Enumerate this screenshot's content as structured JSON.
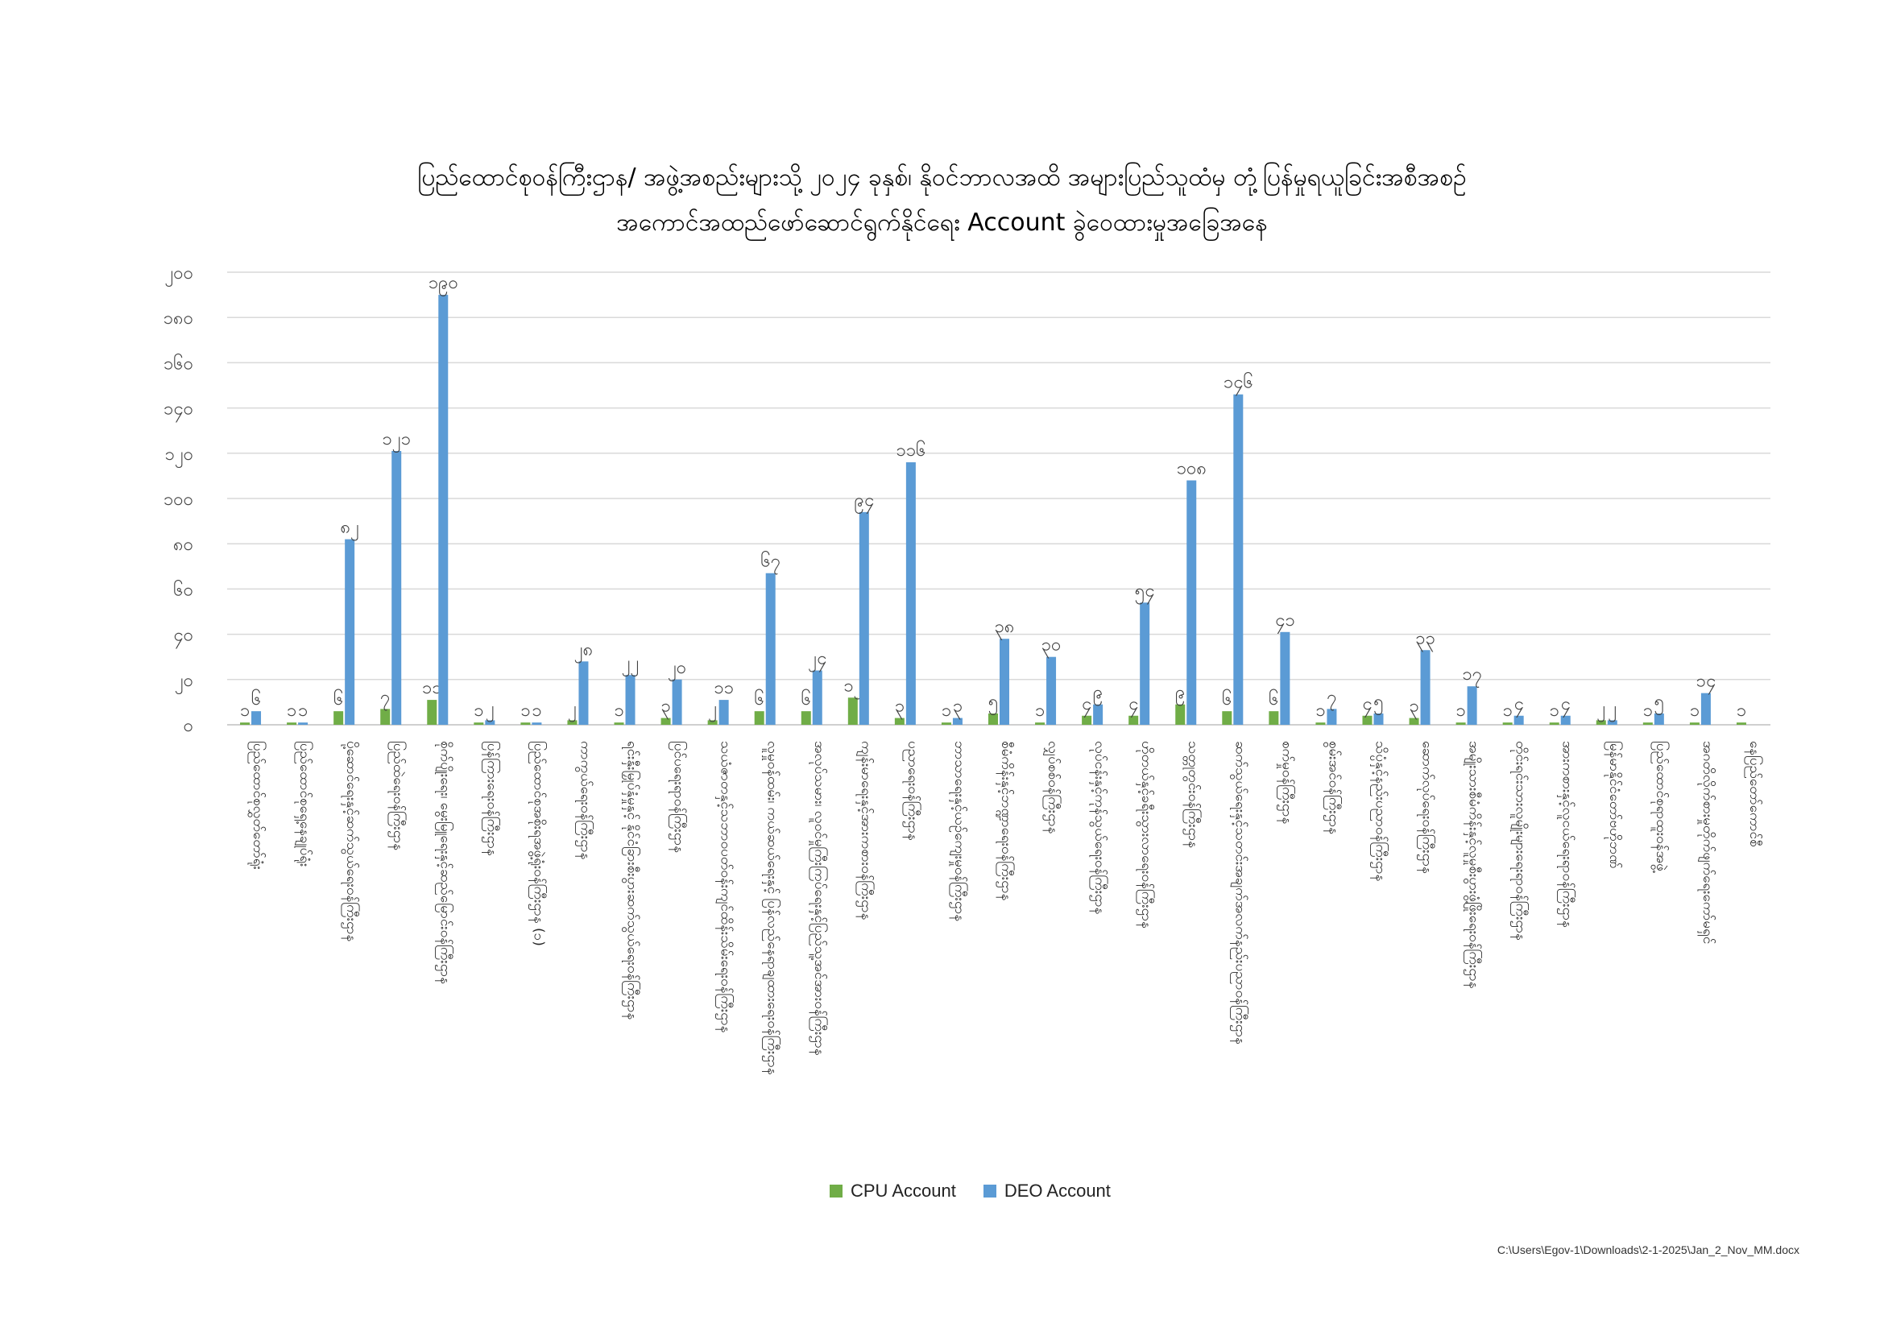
{
  "chart_data": {
    "type": "bar",
    "title": [
      "ပြည်ထောင်စုဝန်ကြီးဌာန/ အဖွဲ့အစည်းများသို့ ၂၀၂၄ ခုနှစ်၊ နိုဝင်ဘာလအထိ အများပြည်သူထံမှ တုံ့ပြန်မှုရယူခြင်းအစီအစဉ်",
      "အကောင်အထည်ဖော်ဆောင်ရွက်နိုင်ရေး Account ခွဲဝေထားမှုအခြေအနေ"
    ],
    "ylim": [
      0,
      200
    ],
    "yticks": [
      "၀",
      "၂၀",
      "၄၀",
      "၆၀",
      "၈၀",
      "၁၀၀",
      "၁၂၀",
      "၁၄၀",
      "၁၆၀",
      "၁၈၀",
      "၂၀၀"
    ],
    "ytick_values": [
      0,
      20,
      40,
      60,
      80,
      100,
      120,
      140,
      160,
      180,
      200
    ],
    "grid": true,
    "legend_position": "bottom",
    "categories": [
      "ပြည်ထောင်စုလွှတ်တော်ရုံး",
      "ပြည်ထောင်စုရှေ့နေချုပ်ရုံး",
      "ပို့ဆောင်ရေးနှင့်ဆက်သွယ်ရေးဝန်ကြီးဌာန",
      "ပြည်ထဲရေးဝန်ကြီးဌာန",
      "စိုက်ပျိုးရေး၊ မွေးမြူရေးနှင့်ဆည်မြောင်းဝန်ကြီးဌာန",
      "ပြန်ကြားရေးဝန်ကြီးဌာန",
      "ပြည်ထောင်စုအစိုးရအဖွဲ့ရုံးဝန်ကြီးဌာန (၁)",
      "ကာကွယ်ရေးဝန်ကြီးဌာန",
      "ရင်းနှီးမြှုပ်နှံမှုနှင့် နိုင်ငံခြားစီးပွားဆက်သွယ်ရေးဝန်ကြီးဌာန",
      "ပြင်ပရေးရာဝန်ကြီးဌာန",
      "သယံဇာတနှင့်သဘာဝပတ်ဝန်းကျင်ထိန်းသိမ်းရေးဝန်ကြီးဌာန",
      "လူမှုဝန်ထမ်း၊ ကယ်ဆယ်ရေးနှင့် ပြန်လည်နေရာချထားရေးဝန်ကြီးဌာန",
      "အလုပ်သမား၊ လူဝင်မှုကြီးကြပ်ရေးနှင့်ပြည်သူ့အင်အားဝန်ကြီးဌာန",
      "ကျန်းမာရေးနှင့်အားကစားဝန်ကြီးဌာန",
      "ပညာရေးဝန်ကြီးဌာန",
      "ဘာသာရေးနှင့်ယဉ်ကျေးမှုဝန်ကြီးဌာန",
      "စီမံကိန်းနှင့်ဘဏ္ဍာရေးဝန်ကြီးဌာန",
      "လျှပ်စစ်ဝန်ကြီးဌာန",
      "လုပ်ငန်းနှင့်ကုန်သွယ်ရေးဝန်ကြီးဌာန",
      "ဟိုတယ်နှင့်ခရီးသွားလာရေးဝန်ကြီးဌာန",
      "သတ္တုတွင်းဝန်ကြီးဌာန",
      "ဆက်သွယ်ရေးနှင့်သတင်းအချက်အလက်နည်းပညာဝန်ကြီးဌာန",
      "စက်မှုဝန်ကြီးဌာန",
      "စွမ်းအင်ဝန်ကြီးဌာန",
      "သိပ္ပံနှင့်နည်းပညာဝန်ကြီးဌာန",
      "ဆောက်လုပ်ရေးဝန်ကြီးဌာန",
      "အမျိုးသားစီမံကိန်းနှင့်လူမှုစီးပွားဖွံ့ဖြိုးရေးဝန်ကြီးဌာန",
      "တိုင်းရင်းသားလူမျိုးများရေးရာဝန်ကြီးဌာန",
      "အားကစားနှင့်လူငယ်ရေးရာဝန်ကြီးဌာန",
      "မြန်မာနိုင်ငံတော်ဗဟိုဘဏ်",
      "ပြည်ထောင်စုရာထူးဝန်အဖွဲ့",
      "အဂတိလိုက်စားမှုတိုက်ဖျက်ရေးကော်မရှင်",
      "နေပြည်တော်ကောင်စီ"
    ],
    "series": [
      {
        "name": "CPU Account",
        "color": "#70AD47",
        "values": [
          1,
          1,
          6,
          7,
          11,
          1,
          1,
          2,
          1,
          3,
          2,
          6,
          6,
          12,
          3,
          1,
          5,
          1,
          4,
          4,
          9,
          6,
          6,
          1,
          4,
          3,
          1,
          1,
          1,
          2,
          1,
          1,
          1
        ],
        "labels": [
          "၁",
          "၁",
          "၆",
          "၇",
          "၁၁",
          "၁",
          "၁",
          "၂",
          "၁",
          "၃",
          "၂",
          "၆",
          "၆",
          "၁၂",
          "၃",
          "၁",
          "၅",
          "၁",
          "၄",
          "၄",
          "၉",
          "၆",
          "၆",
          "၁",
          "၄",
          "၃",
          "၁",
          "၁",
          "၁",
          "၂",
          "၁",
          "၁",
          "၁"
        ]
      },
      {
        "name": "DEO Account",
        "color": "#5B9BD5",
        "values": [
          6,
          1,
          82,
          121,
          190,
          2,
          1,
          28,
          22,
          20,
          11,
          67,
          24,
          94,
          116,
          3,
          38,
          30,
          9,
          54,
          108,
          146,
          41,
          7,
          5,
          33,
          17,
          4,
          4,
          2,
          5,
          14,
          0
        ],
        "labels": [
          "၆",
          "၁",
          "၈၂",
          "၁၂၁",
          "၁၉၀",
          "၂",
          "၁",
          "၂၈",
          "၂၂",
          "၂၀",
          "၁၁",
          "၆၇",
          "၂၄",
          "၉၄",
          "၁၁၆",
          "၃",
          "၃၈",
          "၃၀",
          "၉",
          "၅၄",
          "၁၀၈",
          "၁၄၆",
          "၄၁",
          "၇",
          "၅",
          "၃၃",
          "၁၇",
          "၄",
          "၄",
          "၂",
          "၅",
          "၁၄",
          ""
        ]
      }
    ]
  },
  "footer": {
    "path": "C:\\Users\\Egov-1\\Downloads\\2-1-2025\\Jan_2_Nov_MM.docx"
  }
}
